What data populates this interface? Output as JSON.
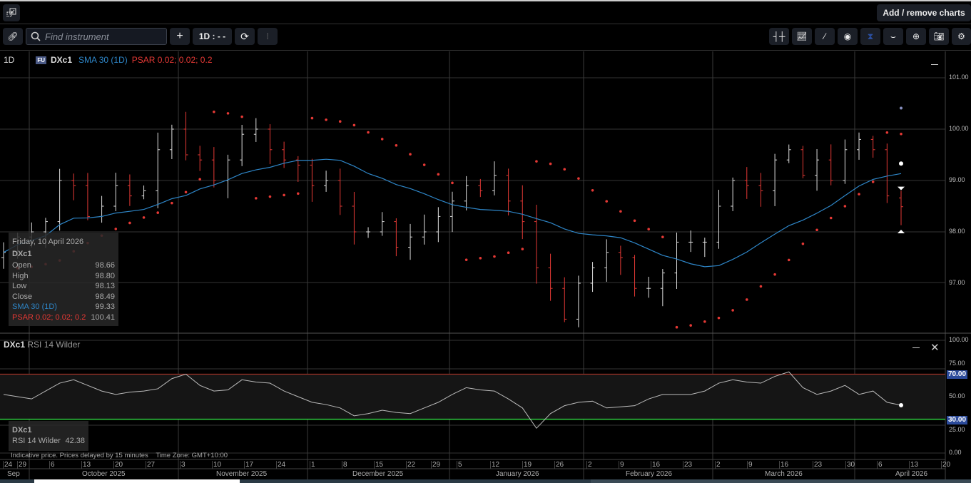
{
  "header": {
    "add_remove_label": "Add / remove charts"
  },
  "toolbar": {
    "search_placeholder": "Find instrument",
    "interval_label": "1D : - -"
  },
  "legend": {
    "interval": "1D",
    "badge": "FU",
    "symbol": "DXc1",
    "sma": "SMA 30 (1D)",
    "psar": "PSAR 0.02; 0.02; 0.2"
  },
  "tooltip": {
    "date": "Friday, 10 April 2026",
    "symbol": "DXc1",
    "rows": [
      {
        "label": "Open",
        "value": "98.66"
      },
      {
        "label": "High",
        "value": "98.80"
      },
      {
        "label": "Low",
        "value": "98.13"
      },
      {
        "label": "Close",
        "value": "98.49"
      }
    ],
    "sma_label": "SMA 30 (1D)",
    "sma_value": "99.33",
    "psar_label": "PSAR 0.02; 0.02; 0.2",
    "psar_value": "100.41"
  },
  "rsi": {
    "symbol": "DXc1",
    "label": "RSI 14 Wilder",
    "tip_label": "RSI 14 Wilder",
    "tip_value": "42.38",
    "overbought": "70.00",
    "oversold": "30.00"
  },
  "price_axis": [
    "101.00",
    "100.00",
    "99.00",
    "98.00",
    "97.00"
  ],
  "rsi_axis": [
    "100.00",
    "75.00",
    "50.00",
    "25.00",
    "0.00"
  ],
  "footer": {
    "note": "Indicative price. Prices delayed by 15 minutes",
    "tz": "Time Zone: GMT+10:00"
  },
  "dates": [
    "24",
    "29",
    "6",
    "13",
    "20",
    "27",
    "3",
    "10",
    "17",
    "24",
    "1",
    "8",
    "15",
    "22",
    "29",
    "5",
    "12",
    "19",
    "26",
    "2",
    "9",
    "16",
    "23",
    "2",
    "9",
    "16",
    "23",
    "30",
    "6",
    "13",
    "20"
  ],
  "months": [
    "Sep",
    "October 2025",
    "November 2025",
    "December 2025",
    "January 2026",
    "February 2026",
    "March 2026",
    "April 2026"
  ],
  "colors": {
    "sma": "#2e86c8",
    "psar": "#e53935",
    "up": "#dddddd",
    "down": "#e53935",
    "ob": "#c0392b",
    "os": "#2ecc40"
  },
  "series": {
    "closes": [
      97.6,
      97.9,
      98.0,
      98.2,
      99.0,
      98.9,
      98.3,
      98.5,
      98.9,
      98.7,
      98.8,
      99.6,
      100.0,
      99.5,
      99.4,
      99.0,
      99.4,
      99.9,
      100.0,
      99.6,
      99.4,
      99.3,
      98.9,
      99.0,
      98.5,
      98.0,
      98.0,
      98.2,
      97.7,
      97.9,
      98.0,
      98.3,
      98.6,
      98.9,
      98.8,
      99.1,
      98.6,
      98.2,
      97.3,
      96.9,
      96.3,
      97.0,
      97.3,
      97.6,
      97.5,
      96.9,
      96.9,
      97.2,
      97.8,
      97.8,
      97.8,
      98.5,
      99.0,
      98.9,
      98.8,
      99.4,
      99.6,
      99.1,
      99.4,
      99.0,
      99.6,
      99.8,
      99.6,
      98.7,
      98.49
    ],
    "rsi": [
      52,
      50,
      48,
      55,
      62,
      65,
      60,
      55,
      52,
      54,
      55,
      57,
      66,
      70,
      60,
      55,
      56,
      65,
      63,
      62,
      55,
      50,
      45,
      43,
      40,
      33,
      35,
      38,
      36,
      35,
      40,
      45,
      52,
      58,
      56,
      55,
      48,
      40,
      22,
      35,
      42,
      45,
      46,
      40,
      41,
      42,
      48,
      52,
      52,
      52,
      55,
      62,
      65,
      63,
      62,
      68,
      72,
      58,
      52,
      55,
      60,
      52,
      55,
      45,
      42.38
    ]
  }
}
